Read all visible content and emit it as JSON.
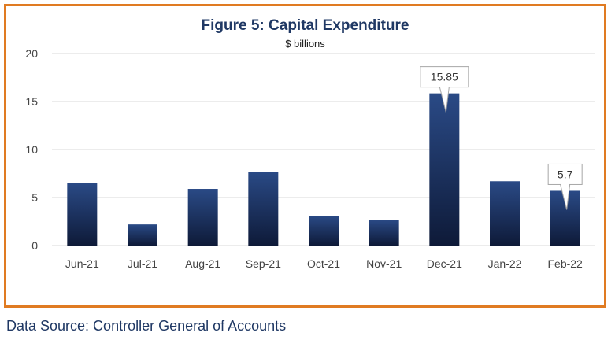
{
  "chart_data": {
    "type": "bar",
    "title": "Figure 5: Capital Expenditure",
    "subtitle": "$ billions",
    "xlabel": "",
    "ylabel": "",
    "categories": [
      "Jun-21",
      "Jul-21",
      "Aug-21",
      "Sep-21",
      "Oct-21",
      "Nov-21",
      "Dec-21",
      "Jan-22",
      "Feb-22"
    ],
    "values": [
      6.5,
      2.2,
      5.9,
      7.7,
      3.1,
      2.7,
      15.85,
      6.7,
      5.7
    ],
    "ylim": [
      0,
      20
    ],
    "yticks": [
      0,
      5,
      10,
      15,
      20
    ],
    "grid": true,
    "data_labels": [
      {
        "category": "Dec-21",
        "text": "15.85"
      },
      {
        "category": "Feb-22",
        "text": "5.7"
      }
    ],
    "colors": {
      "bar_top": "#2a4a86",
      "bar_bottom": "#0e1a38",
      "grid": "#d9d9d9",
      "frame": "#e07b22"
    }
  },
  "source": "Data Source: Controller General of Accounts"
}
